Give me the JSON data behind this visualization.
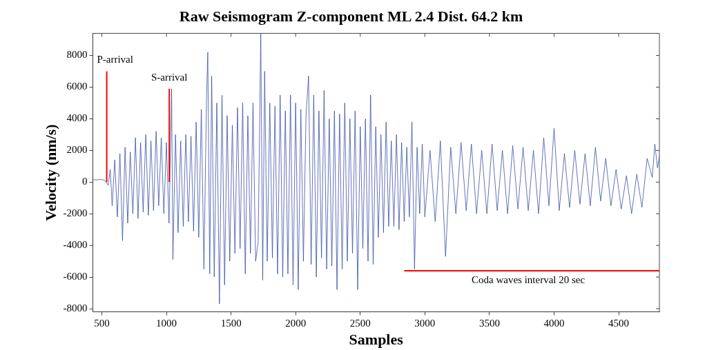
{
  "chart_data": {
    "type": "line",
    "title": "Raw Seismogram Z-component ML 2.4 Dist. 64.2 km",
    "xlabel": "Samples",
    "ylabel": "Velocity (nm/s)",
    "xlim": [
      430,
      4815
    ],
    "xticks": [
      500,
      1000,
      1500,
      2000,
      2500,
      3000,
      3500,
      4000,
      4500
    ],
    "ylim": [
      -8200,
      9400
    ],
    "yticks": [
      -8000,
      -6000,
      -4000,
      -2000,
      0,
      2000,
      4000,
      6000,
      8000
    ],
    "grid": false,
    "legend": false,
    "marker": "none",
    "line_style": "solid",
    "series": [
      {
        "color": "#3a4fa8",
        "x": [
          430,
          460,
          490,
          520,
          550,
          565,
          580,
          600,
          620,
          640,
          660,
          680,
          700,
          720,
          740,
          760,
          780,
          800,
          820,
          840,
          860,
          880,
          900,
          920,
          940,
          960,
          980,
          1000,
          1020,
          1040,
          1050,
          1070,
          1090,
          1110,
          1130,
          1150,
          1170,
          1190,
          1210,
          1230,
          1250,
          1270,
          1290,
          1310,
          1320,
          1335,
          1350,
          1370,
          1390,
          1410,
          1430,
          1450,
          1470,
          1490,
          1510,
          1530,
          1550,
          1570,
          1590,
          1610,
          1630,
          1650,
          1670,
          1690,
          1710,
          1730,
          1745,
          1760,
          1780,
          1800,
          1820,
          1840,
          1860,
          1880,
          1900,
          1920,
          1940,
          1960,
          1980,
          2000,
          2020,
          2040,
          2060,
          2080,
          2100,
          2120,
          2140,
          2160,
          2180,
          2200,
          2220,
          2240,
          2260,
          2280,
          2300,
          2320,
          2340,
          2360,
          2380,
          2400,
          2420,
          2440,
          2460,
          2480,
          2500,
          2520,
          2540,
          2560,
          2580,
          2600,
          2620,
          2640,
          2660,
          2680,
          2700,
          2720,
          2740,
          2760,
          2780,
          2800,
          2820,
          2840,
          2860,
          2880,
          2900,
          2920,
          2940,
          2960,
          2980,
          3000,
          3040,
          3080,
          3120,
          3160,
          3200,
          3240,
          3280,
          3320,
          3360,
          3400,
          3440,
          3480,
          3520,
          3560,
          3600,
          3640,
          3680,
          3720,
          3760,
          3800,
          3840,
          3880,
          3920,
          3960,
          4000,
          4040,
          4080,
          4120,
          4160,
          4200,
          4240,
          4280,
          4320,
          4360,
          4400,
          4440,
          4480,
          4520,
          4560,
          4600,
          4640,
          4680,
          4720,
          4760,
          4780,
          4800,
          4815
        ],
        "values": [
          150,
          140,
          160,
          130,
          -200,
          800,
          -1500,
          1400,
          -2200,
          1800,
          -3700,
          2200,
          -2600,
          1900,
          -2000,
          2800,
          -2300,
          2500,
          -1900,
          3000,
          -2100,
          2600,
          -1800,
          3200,
          -1500,
          2800,
          -2000,
          2500,
          -2600,
          5900,
          -4900,
          3000,
          -3200,
          2600,
          -2800,
          3000,
          -2500,
          2900,
          -3100,
          3800,
          -3500,
          4600,
          -5500,
          5200,
          8200,
          -5800,
          6700,
          -6000,
          5000,
          -7700,
          5500,
          -6500,
          4200,
          -5000,
          3600,
          -4500,
          4700,
          -4200,
          5000,
          -5800,
          4200,
          -4500,
          5000,
          -5000,
          -3800,
          9400,
          -6200,
          7000,
          -5000,
          5000,
          -4800,
          4800,
          -5800,
          5500,
          -6000,
          4500,
          -5800,
          5500,
          -6500,
          5000,
          -6800,
          4600,
          -5000,
          4200,
          6700,
          -5200,
          5500,
          -6000,
          4500,
          -4800,
          5800,
          -5500,
          4000,
          -5300,
          4500,
          -6800,
          4300,
          -5500,
          5000,
          -5000,
          4000,
          -4500,
          4500,
          -6800,
          3500,
          -4200,
          4000,
          -5000,
          5500,
          -5200,
          3500,
          -3500,
          3000,
          -3200,
          3800,
          -2800,
          2600,
          -2800,
          3000,
          -3000,
          2500,
          -2500,
          2200,
          -2200,
          3800,
          -5500,
          2200,
          -2000,
          2400,
          -2200,
          2000,
          -2500,
          2600,
          -4700,
          2200,
          -2000,
          2500,
          -1800,
          2400,
          -2000,
          2000,
          -2000,
          2400,
          -1800,
          2000,
          -2000,
          2300,
          -1700,
          2200,
          -1800,
          2000,
          -2000,
          2800,
          -1500,
          3400,
          -1800,
          1800,
          -1600,
          2000,
          -1400,
          1800,
          -1500,
          2200,
          -1200,
          1500,
          -1500,
          800,
          -1700,
          400,
          -2000,
          500,
          -1600,
          1500,
          300,
          2400,
          900,
          1600
        ]
      },
      {
        "color": "#ff0000",
        "x": [
          538,
          538
        ],
        "values": [
          0,
          7000
        ]
      },
      {
        "color": "#ff0000",
        "x": [
          1022,
          1022
        ],
        "values": [
          0,
          5900
        ]
      },
      {
        "color": "#ff0000",
        "x": [
          2840,
          4815
        ],
        "values": [
          -5600,
          -5600
        ]
      }
    ],
    "annotations": [
      {
        "text": "P-arrival",
        "x": 538,
        "y": 7000
      },
      {
        "text": "S-arrival",
        "x": 1022,
        "y": 5900
      },
      {
        "text": "Coda waves interval 20 sec",
        "x": 3800,
        "y": -5600
      }
    ]
  }
}
